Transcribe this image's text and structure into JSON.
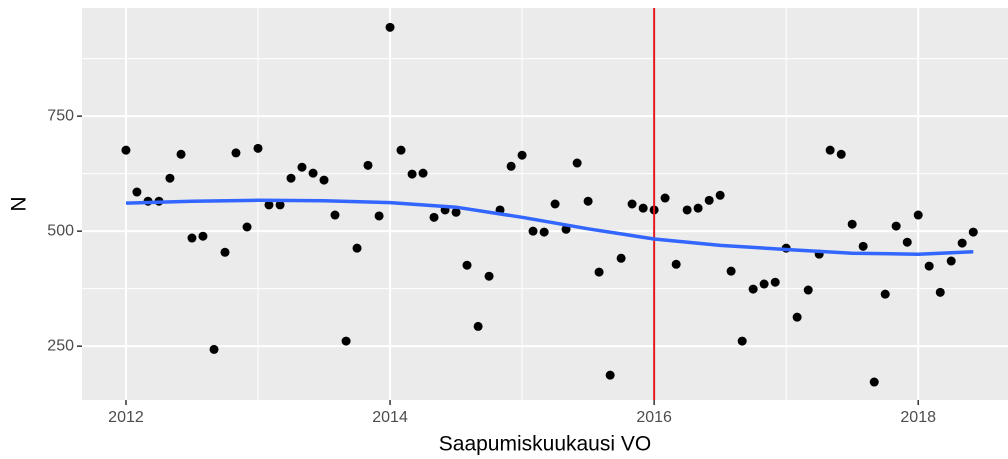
{
  "chart_data": {
    "type": "scatter",
    "x_label": "Saapumiskuukausi VO",
    "y_label": "N",
    "xlim": [
      2011.667,
      2018.68
    ],
    "ylim": [
      133,
      985
    ],
    "xticks": [
      2012,
      2014,
      2016,
      2018
    ],
    "yticks": [
      250,
      500,
      750
    ],
    "grid": true,
    "series": [
      {
        "color": "#000000",
        "x": [
          2012,
          2012.083,
          2012.167,
          2012.25,
          2012.333,
          2012.417,
          2012.5,
          2012.583,
          2012.667,
          2012.75,
          2012.833,
          2012.917,
          2013,
          2013.083,
          2013.167,
          2013.25,
          2013.333,
          2013.417,
          2013.5,
          2013.583,
          2013.667,
          2013.75,
          2013.833,
          2013.917,
          2014,
          2014.083,
          2014.167,
          2014.25,
          2014.333,
          2014.417,
          2014.5,
          2014.583,
          2014.667,
          2014.75,
          2014.833,
          2014.917,
          2015,
          2015.083,
          2015.167,
          2015.25,
          2015.333,
          2015.417,
          2015.5,
          2015.583,
          2015.667,
          2015.75,
          2015.833,
          2015.917,
          2016,
          2016.083,
          2016.167,
          2016.25,
          2016.333,
          2016.417,
          2016.5,
          2016.583,
          2016.667,
          2016.75,
          2016.833,
          2016.917,
          2017,
          2017.083,
          2017.167,
          2017.25,
          2017.333,
          2017.417,
          2017.5,
          2017.583,
          2017.667,
          2017.75,
          2017.833,
          2017.917,
          2018,
          2018.083,
          2018.167,
          2018.25,
          2018.333,
          2018.417
        ],
        "values": [
          676,
          585,
          565,
          565,
          615,
          667,
          485,
          489,
          243,
          454,
          670,
          509,
          680,
          557,
          557,
          615,
          639,
          626,
          611,
          535,
          261,
          463,
          643,
          533,
          943,
          676,
          624,
          626,
          530,
          546,
          541,
          426,
          293,
          402,
          546,
          641,
          665,
          500,
          498,
          559,
          504,
          648,
          565,
          411,
          187,
          441,
          559,
          550,
          546,
          572,
          428,
          546,
          550,
          567,
          578,
          413,
          261,
          374,
          385,
          389,
          463,
          313,
          372,
          450,
          676,
          667,
          515,
          467,
          172,
          363,
          511,
          476,
          535,
          424,
          367,
          435,
          474,
          498
        ]
      }
    ],
    "smooth": {
      "color": "#3366ff",
      "x": [
        2012,
        2012.5,
        2013,
        2013.5,
        2014,
        2014.5,
        2015,
        2015.5,
        2016,
        2016.5,
        2017,
        2017.5,
        2018,
        2018.417
      ],
      "values": [
        561,
        565,
        567,
        566,
        562,
        552,
        530,
        505,
        483,
        469,
        460,
        452,
        450,
        455
      ]
    },
    "vline": {
      "x": 2016,
      "color": "#e41a1c"
    }
  }
}
